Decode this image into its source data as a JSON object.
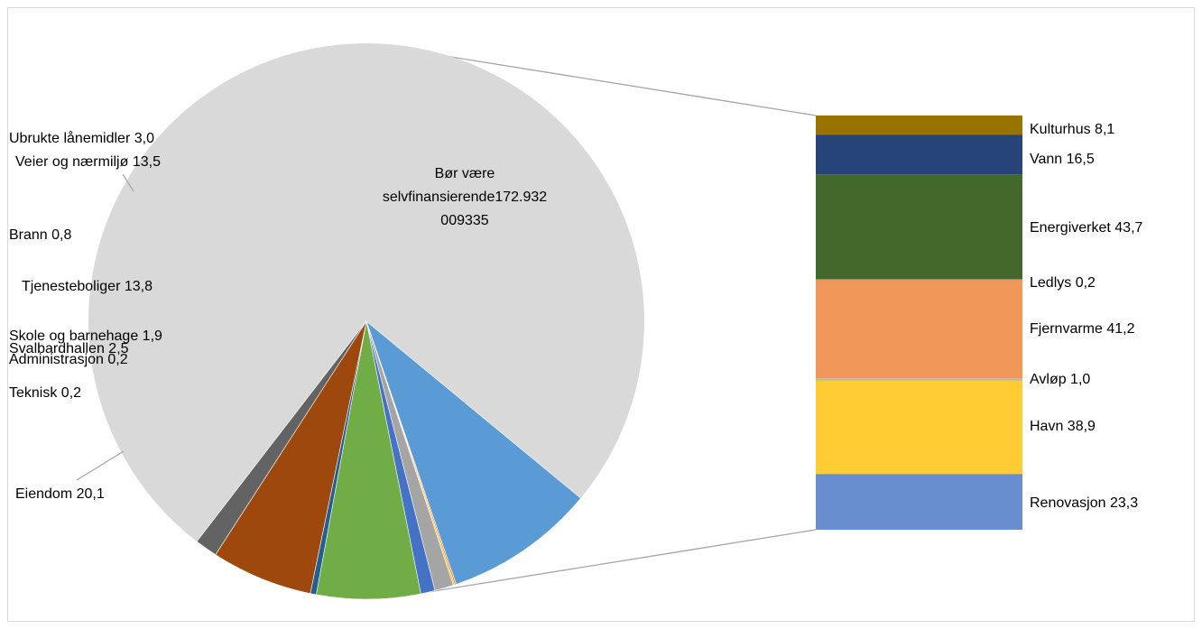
{
  "chart_data": {
    "type": "bar-of-pie",
    "pie": {
      "slices": [
        {
          "label": "Bør være selvfinansierende",
          "value": 172.932009335,
          "value_text": "172.932 009335",
          "color": "#d9d9d9"
        },
        {
          "label": "Eiendom",
          "value": 20.1,
          "value_text": "20,1",
          "color": "#5b9bd5"
        },
        {
          "label": "Teknisk",
          "value": 0.2,
          "value_text": "0,2",
          "color": "#ed7d31"
        },
        {
          "label": "Administrasjon",
          "value": 0.2,
          "value_text": "0,2",
          "color": "#ffc000"
        },
        {
          "label": "Svalbardhallen",
          "value": 2.5,
          "value_text": "2,5",
          "color": "#a5a5a5"
        },
        {
          "label": "Skole og barnehage",
          "value": 1.9,
          "value_text": "1,9",
          "color": "#4472c4"
        },
        {
          "label": "Tjenesteboliger",
          "value": 13.8,
          "value_text": "13,8",
          "color": "#70ad47"
        },
        {
          "label": "Brann",
          "value": 0.8,
          "value_text": "0,8",
          "color": "#255e91"
        },
        {
          "label": "Veier og nærmiljø",
          "value": 13.5,
          "value_text": "13,5",
          "color": "#9e480e"
        },
        {
          "label": "Ubrukte lånemidler",
          "value": 3.0,
          "value_text": "3,0",
          "color": "#636363"
        }
      ]
    },
    "bar": {
      "segments": [
        {
          "label": "Renovasjon",
          "value": 23.3,
          "value_text": "23,3",
          "color": "#698ed0"
        },
        {
          "label": "Havn",
          "value": 38.9,
          "value_text": "38,9",
          "color": "#ffcd33"
        },
        {
          "label": "Avløp",
          "value": 1.0,
          "value_text": "1,0",
          "color": "#b7b7b7"
        },
        {
          "label": "Fjernvarme",
          "value": 41.2,
          "value_text": "41,2",
          "color": "#f1975a"
        },
        {
          "label": "Ledlys",
          "value": 0.2,
          "value_text": "0,2",
          "color": "#5b9bd5"
        },
        {
          "label": "Energiverket",
          "value": 43.7,
          "value_text": "43,7",
          "color": "#43682b"
        },
        {
          "label": "Vann",
          "value": 16.5,
          "value_text": "16,5",
          "color": "#264478"
        },
        {
          "label": "Kulturhus",
          "value": 8.1,
          "value_text": "8,1",
          "color": "#997300"
        }
      ]
    },
    "legend": "none"
  }
}
